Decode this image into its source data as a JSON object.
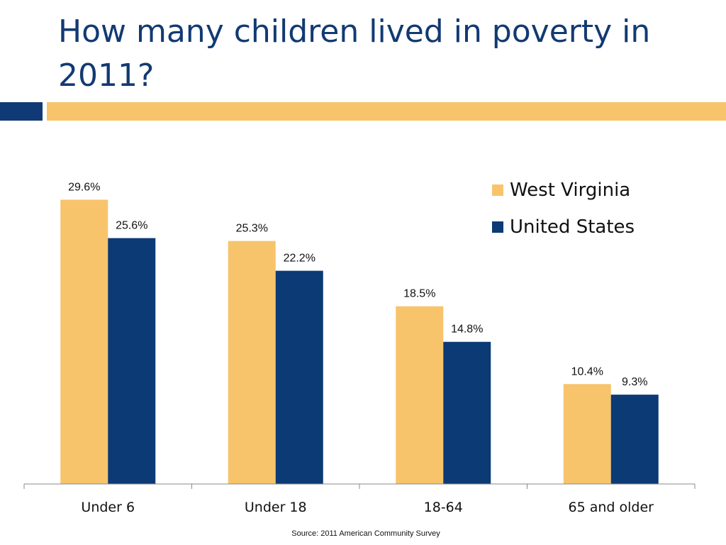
{
  "slide": {
    "title": "How many children lived in poverty in 2011?",
    "source": "Source: 2011 American Community Survey"
  },
  "colors": {
    "title": "#123a73",
    "accent_blue": "#0f3a75",
    "accent_gold": "#f7c46c"
  },
  "chart_data": {
    "type": "bar",
    "categories": [
      "Under 6",
      "Under 18",
      "18-64",
      "65 and older"
    ],
    "series": [
      {
        "name": "West Virginia",
        "values": [
          29.6,
          25.3,
          18.5,
          10.4
        ],
        "labels": [
          "29.6%",
          "25.3%",
          "18.5%",
          "10.4%"
        ],
        "color": "#f7c46c"
      },
      {
        "name": "United States",
        "values": [
          25.6,
          22.2,
          14.8,
          9.3
        ],
        "labels": [
          "25.6%",
          "22.2%",
          "14.8%",
          "9.3%"
        ],
        "color": "#0b3a75"
      }
    ],
    "ylim": [
      0,
      30
    ],
    "legend_position": "top-right",
    "grid": false
  }
}
